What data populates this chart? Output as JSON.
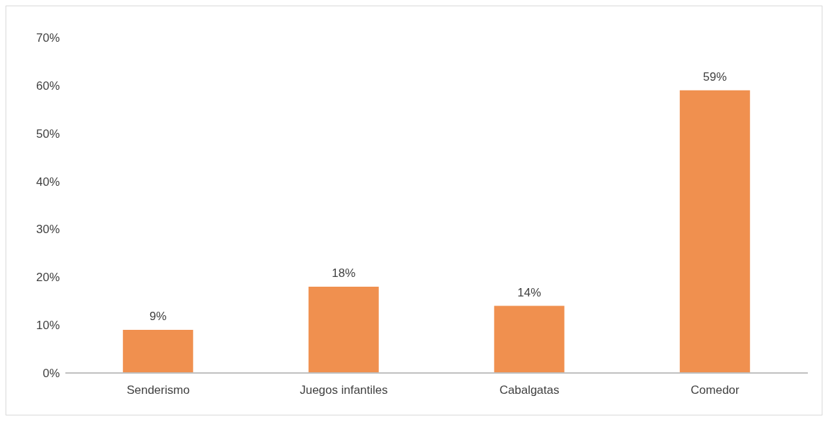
{
  "chart_data": {
    "type": "bar",
    "categories": [
      "Senderismo",
      "Juegos infantiles",
      "Cabalgatas",
      "Comedor"
    ],
    "values": [
      9,
      18,
      14,
      59
    ],
    "color": "#f0904f",
    "value_labels": [
      "9%",
      "18%",
      "14%",
      "59%"
    ],
    "ylim": [
      0,
      70
    ],
    "yticks": [
      {
        "value": 0,
        "label": "0%"
      },
      {
        "value": 10,
        "label": "10%"
      },
      {
        "value": 20,
        "label": "20%"
      },
      {
        "value": 30,
        "label": "30%"
      },
      {
        "value": 40,
        "label": "40%"
      },
      {
        "value": 50,
        "label": "50%"
      },
      {
        "value": 60,
        "label": "60%"
      },
      {
        "value": 70,
        "label": "70%"
      }
    ],
    "grid": false
  }
}
